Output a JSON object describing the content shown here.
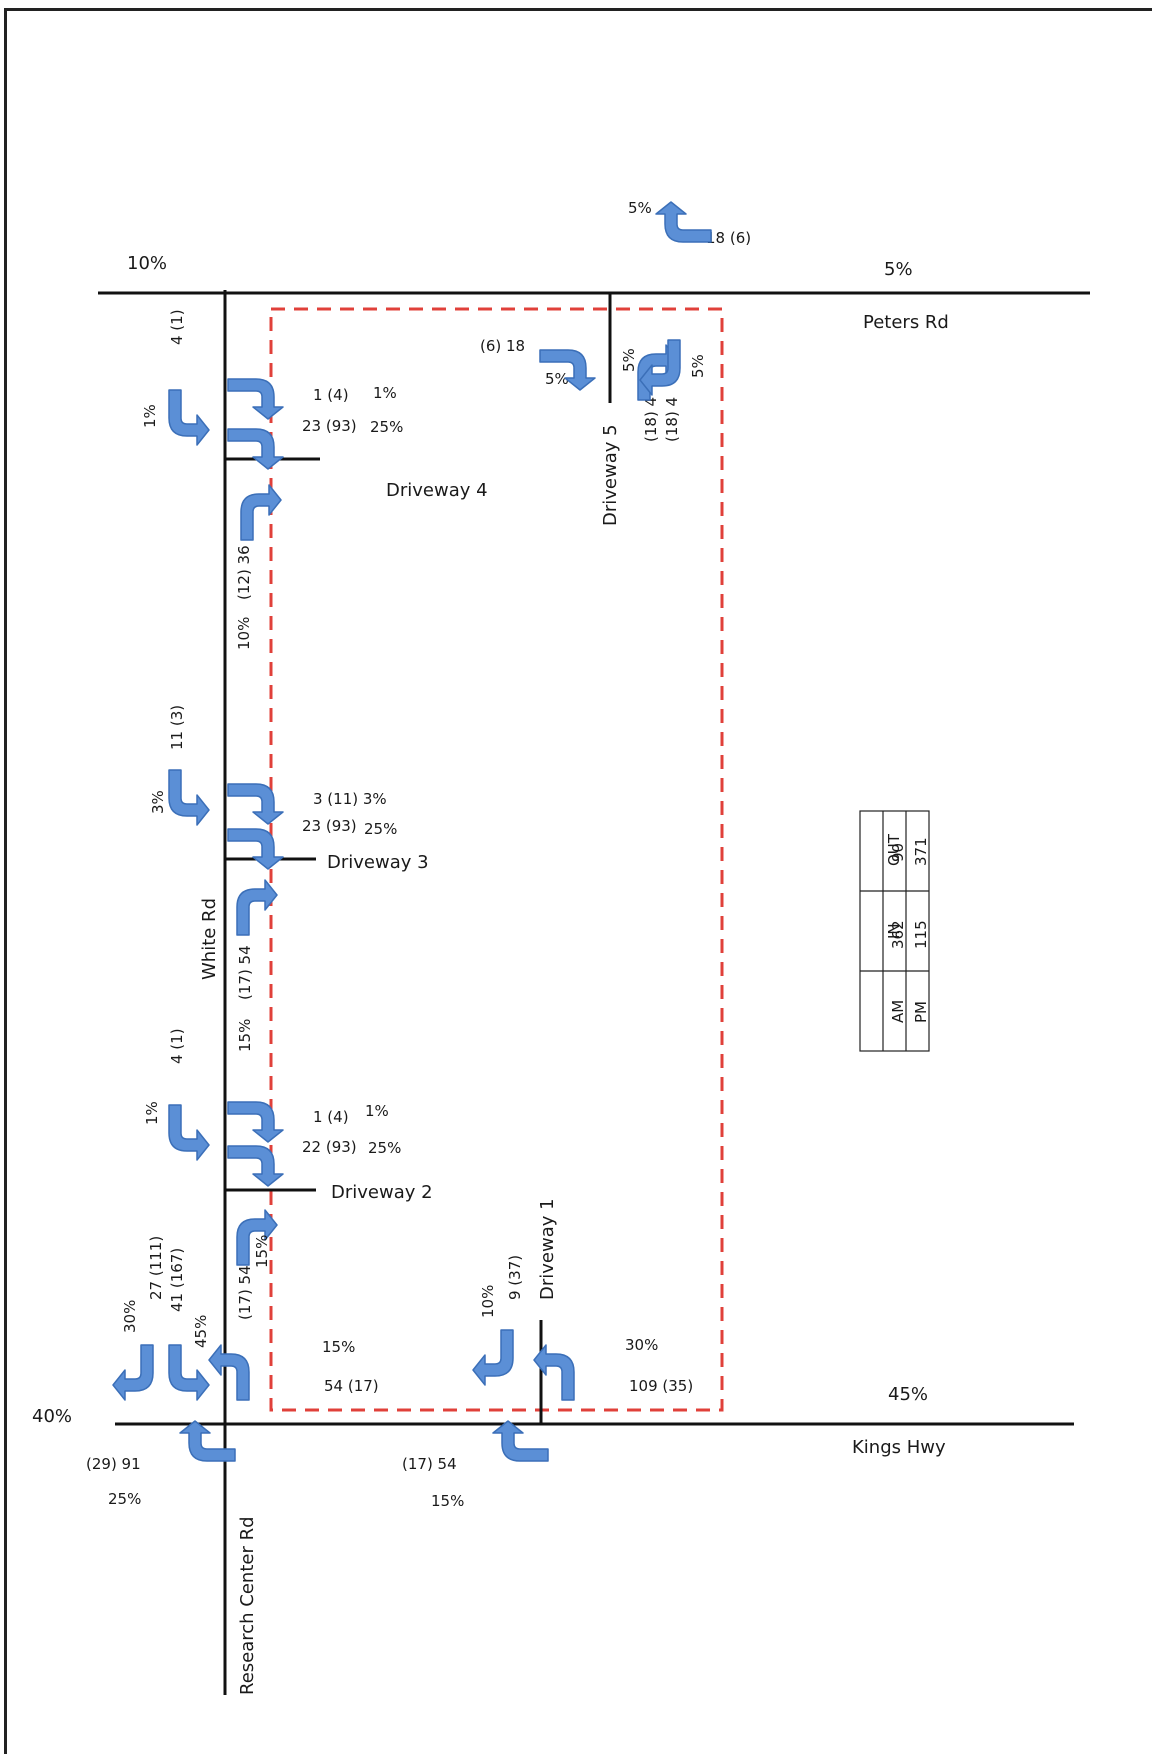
{
  "roads": {
    "peters": "Peters Rd",
    "white": "White Rd",
    "kings": "Kings Hwy",
    "research": "Research Center Rd",
    "dw1": "Driveway 1",
    "dw2": "Driveway 2",
    "dw3": "Driveway 3",
    "dw4": "Driveway 4",
    "dw5": "Driveway 5"
  },
  "peters_rd": {
    "west_pct": "10%",
    "east_pct": "5%",
    "turn_top_pct": "5%",
    "turn_top_vol": "18  (6)",
    "dw5_in_vol": "(6)  18",
    "dw5_in_pct": "5%",
    "dw5_out_left_pct": "5%",
    "dw5_out_right_pct": "5%",
    "dw5_out_left_vol": "(18)  4",
    "dw5_out_right_vol": "(18)  4"
  },
  "white_rd": {
    "dw4_rt_vol": "4  (1)",
    "dw4_rt_pct": "1%",
    "dw4_out_r_vol": "1  (4)",
    "dw4_out_r_pct": "1%",
    "dw4_out_l_vol": "23  (93)",
    "dw4_out_l_pct": "25%",
    "dw4_in_vol": "(12)  36",
    "dw4_in_pct": "10%",
    "dw3_rt_vol": "11  (3)",
    "dw3_rt_pct": "3%",
    "dw3_out_r": "3  (11)  3%",
    "dw3_out_l_vol": "23  (93)",
    "dw3_out_l_pct": "25%",
    "dw3_in_vol": "(17)  54",
    "dw3_in_pct": "15%",
    "dw2_rt_vol": "4  (1)",
    "dw2_rt_pct": "1%",
    "dw2_out_r_vol": "1  (4)",
    "dw2_out_r_pct": "1%",
    "dw2_out_l_vol": "22  (93)",
    "dw2_out_l_pct": "25%",
    "dw2_in_vol": "(17)  54",
    "dw2_in_pct": "15%",
    "sb_left_vol": "27  (111)",
    "sb_left_pct": "30%",
    "sb_right_vol": "41  (167)",
    "sb_right_pct": "45%"
  },
  "kings_hwy": {
    "west_pct": "40%",
    "east_pct": "45%",
    "white_out_pct": "15%",
    "white_out_vol": "54  (17)",
    "dw1_left_pct": "10%",
    "dw1_left_vol": "9  (37)",
    "dw1_out_pct": "30%",
    "dw1_out_vol": "109  (35)",
    "nb_research_vol": "(29)  91",
    "nb_research_pct": "25%",
    "nb_dw1_vol": "(17)  54",
    "nb_dw1_pct": "15%"
  },
  "trip_table": {
    "headers": [
      "",
      "IN",
      "OUT"
    ],
    "rows": [
      {
        "period": "AM",
        "in": "362",
        "out": "90"
      },
      {
        "period": "PM",
        "in": "115",
        "out": "371"
      }
    ]
  },
  "colors": {
    "arrow": "#5b8fd6",
    "site_boundary": "#e0403a",
    "road": "#111111"
  }
}
